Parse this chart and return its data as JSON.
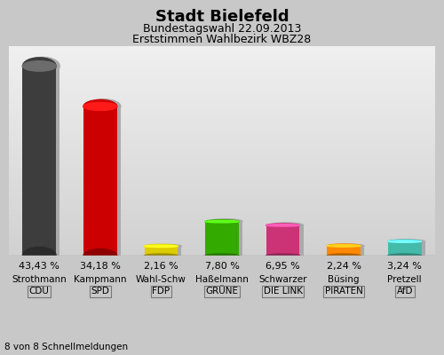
{
  "title": "Stadt Bielefeld",
  "subtitle1": "Bundestagswahl 22.09.2013",
  "subtitle2": "Erststimmen Wahlbezirk WBZ28",
  "footer": "8 von 8 Schnellmeldungen",
  "categories": [
    "CDU",
    "SPD",
    "FDP",
    "GRÜNE",
    "DIE LINK",
    "PIRATEN",
    "AfD"
  ],
  "candidates": [
    "Strothmann",
    "Kampmann",
    "Wahl-Schw",
    "Haßelmann",
    "Schwarzer",
    "Büsing",
    "Pretzell"
  ],
  "values": [
    43.43,
    34.18,
    2.16,
    7.8,
    6.95,
    2.24,
    3.24
  ],
  "labels": [
    "43,43 %",
    "34,18 %",
    "2,16 %",
    "7,80 %",
    "6,95 %",
    "2,24 %",
    "3,24 %"
  ],
  "colors": [
    "#3d3d3d",
    "#cc0000",
    "#ddcc00",
    "#33aa00",
    "#cc3377",
    "#ff8800",
    "#44bbaa"
  ],
  "shadow_color": "#aaaaaa",
  "bg_color_top": "#f0f0f0",
  "bg_color_bottom": "#c8c8c8",
  "bar_width": 0.55,
  "ylim": [
    0,
    48
  ],
  "title_fontsize": 13,
  "subtitle_fontsize": 9,
  "label_fontsize": 8,
  "tick_fontsize": 7.5
}
